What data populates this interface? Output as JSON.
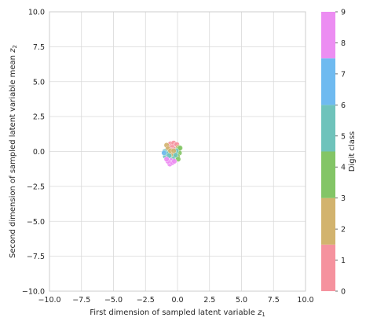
{
  "chart_data": {
    "type": "scatter",
    "xlabel": "First dimension of sampled latent variable",
    "xlabel_sub": "z",
    "xlabel_subscript": "1",
    "ylabel": "Second dimension of sampled latent variable mean",
    "ylabel_sub": "z",
    "ylabel_subscript": "2",
    "xlim": [
      -10.0,
      10.0
    ],
    "ylim": [
      -10.0,
      10.0
    ],
    "xticks": [
      "−10.0",
      "−7.5",
      "−5.0",
      "−2.5",
      "0.0",
      "2.5",
      "5.0",
      "7.5",
      "10.0"
    ],
    "yticks": [
      "−10.0",
      "−7.5",
      "−5.0",
      "−2.5",
      "0.0",
      "2.5",
      "5.0",
      "7.5",
      "10.0"
    ],
    "grid": true,
    "colorbar": {
      "label": "Digit class",
      "ticks": [
        "0",
        "1",
        "2",
        "3",
        "4",
        "5",
        "6",
        "7",
        "8",
        "9"
      ],
      "bands": [
        {
          "from": 0,
          "to": 1.5,
          "color": "#f5929e"
        },
        {
          "from": 1.5,
          "to": 3,
          "color": "#d2b36e"
        },
        {
          "from": 3,
          "to": 4.5,
          "color": "#83c566"
        },
        {
          "from": 4.5,
          "to": 6,
          "color": "#6fc3bb"
        },
        {
          "from": 6,
          "to": 7.5,
          "color": "#6fbaf0"
        },
        {
          "from": 7.5,
          "to": 9,
          "color": "#ec8df2"
        }
      ]
    },
    "points": [
      {
        "x": -0.55,
        "y": 0.55,
        "c": 0
      },
      {
        "x": -0.3,
        "y": 0.6,
        "c": 0
      },
      {
        "x": -0.15,
        "y": 0.45,
        "c": 0
      },
      {
        "x": -0.7,
        "y": 0.35,
        "c": 0
      },
      {
        "x": -0.4,
        "y": 0.3,
        "c": 1
      },
      {
        "x": -0.2,
        "y": 0.15,
        "c": 1
      },
      {
        "x": -0.05,
        "y": 0.5,
        "c": 1
      },
      {
        "x": -0.5,
        "y": 0.1,
        "c": 1
      },
      {
        "x": -0.85,
        "y": 0.45,
        "c": 2
      },
      {
        "x": -0.6,
        "y": -0.05,
        "c": 2
      },
      {
        "x": -0.3,
        "y": -0.2,
        "c": 2
      },
      {
        "x": 0.05,
        "y": 0.3,
        "c": 3
      },
      {
        "x": -0.75,
        "y": 0.2,
        "c": 3
      },
      {
        "x": -0.45,
        "y": -0.3,
        "c": 3
      },
      {
        "x": 0.1,
        "y": 0.2,
        "c": 4
      },
      {
        "x": 0.15,
        "y": -0.1,
        "c": 4
      },
      {
        "x": 0.0,
        "y": -0.35,
        "c": 4
      },
      {
        "x": -0.2,
        "y": -0.4,
        "c": 4
      },
      {
        "x": 0.2,
        "y": 0.25,
        "c": 4
      },
      {
        "x": 0.05,
        "y": -0.55,
        "c": 4
      },
      {
        "x": -0.1,
        "y": 0.05,
        "c": 5
      },
      {
        "x": -0.35,
        "y": -0.55,
        "c": 5
      },
      {
        "x": -0.9,
        "y": -0.2,
        "c": 6
      },
      {
        "x": -1.0,
        "y": 0.0,
        "c": 6
      },
      {
        "x": -0.95,
        "y": -0.35,
        "c": 6
      },
      {
        "x": -0.8,
        "y": -0.15,
        "c": 6
      },
      {
        "x": -0.7,
        "y": -0.45,
        "c": 7
      },
      {
        "x": -1.05,
        "y": -0.1,
        "c": 7
      },
      {
        "x": -0.65,
        "y": -0.3,
        "c": 6
      },
      {
        "x": -0.5,
        "y": -0.65,
        "c": 8
      },
      {
        "x": -0.6,
        "y": -0.9,
        "c": 9
      },
      {
        "x": -0.4,
        "y": -0.8,
        "c": 9
      },
      {
        "x": -0.75,
        "y": -0.7,
        "c": 9
      },
      {
        "x": -0.25,
        "y": -0.7,
        "c": 9
      },
      {
        "x": -0.85,
        "y": -0.55,
        "c": 8
      },
      {
        "x": -0.15,
        "y": -0.25,
        "c": 5
      },
      {
        "x": -0.55,
        "y": 0.05,
        "c": 3
      },
      {
        "x": -0.3,
        "y": 0.05,
        "c": 2
      }
    ]
  }
}
